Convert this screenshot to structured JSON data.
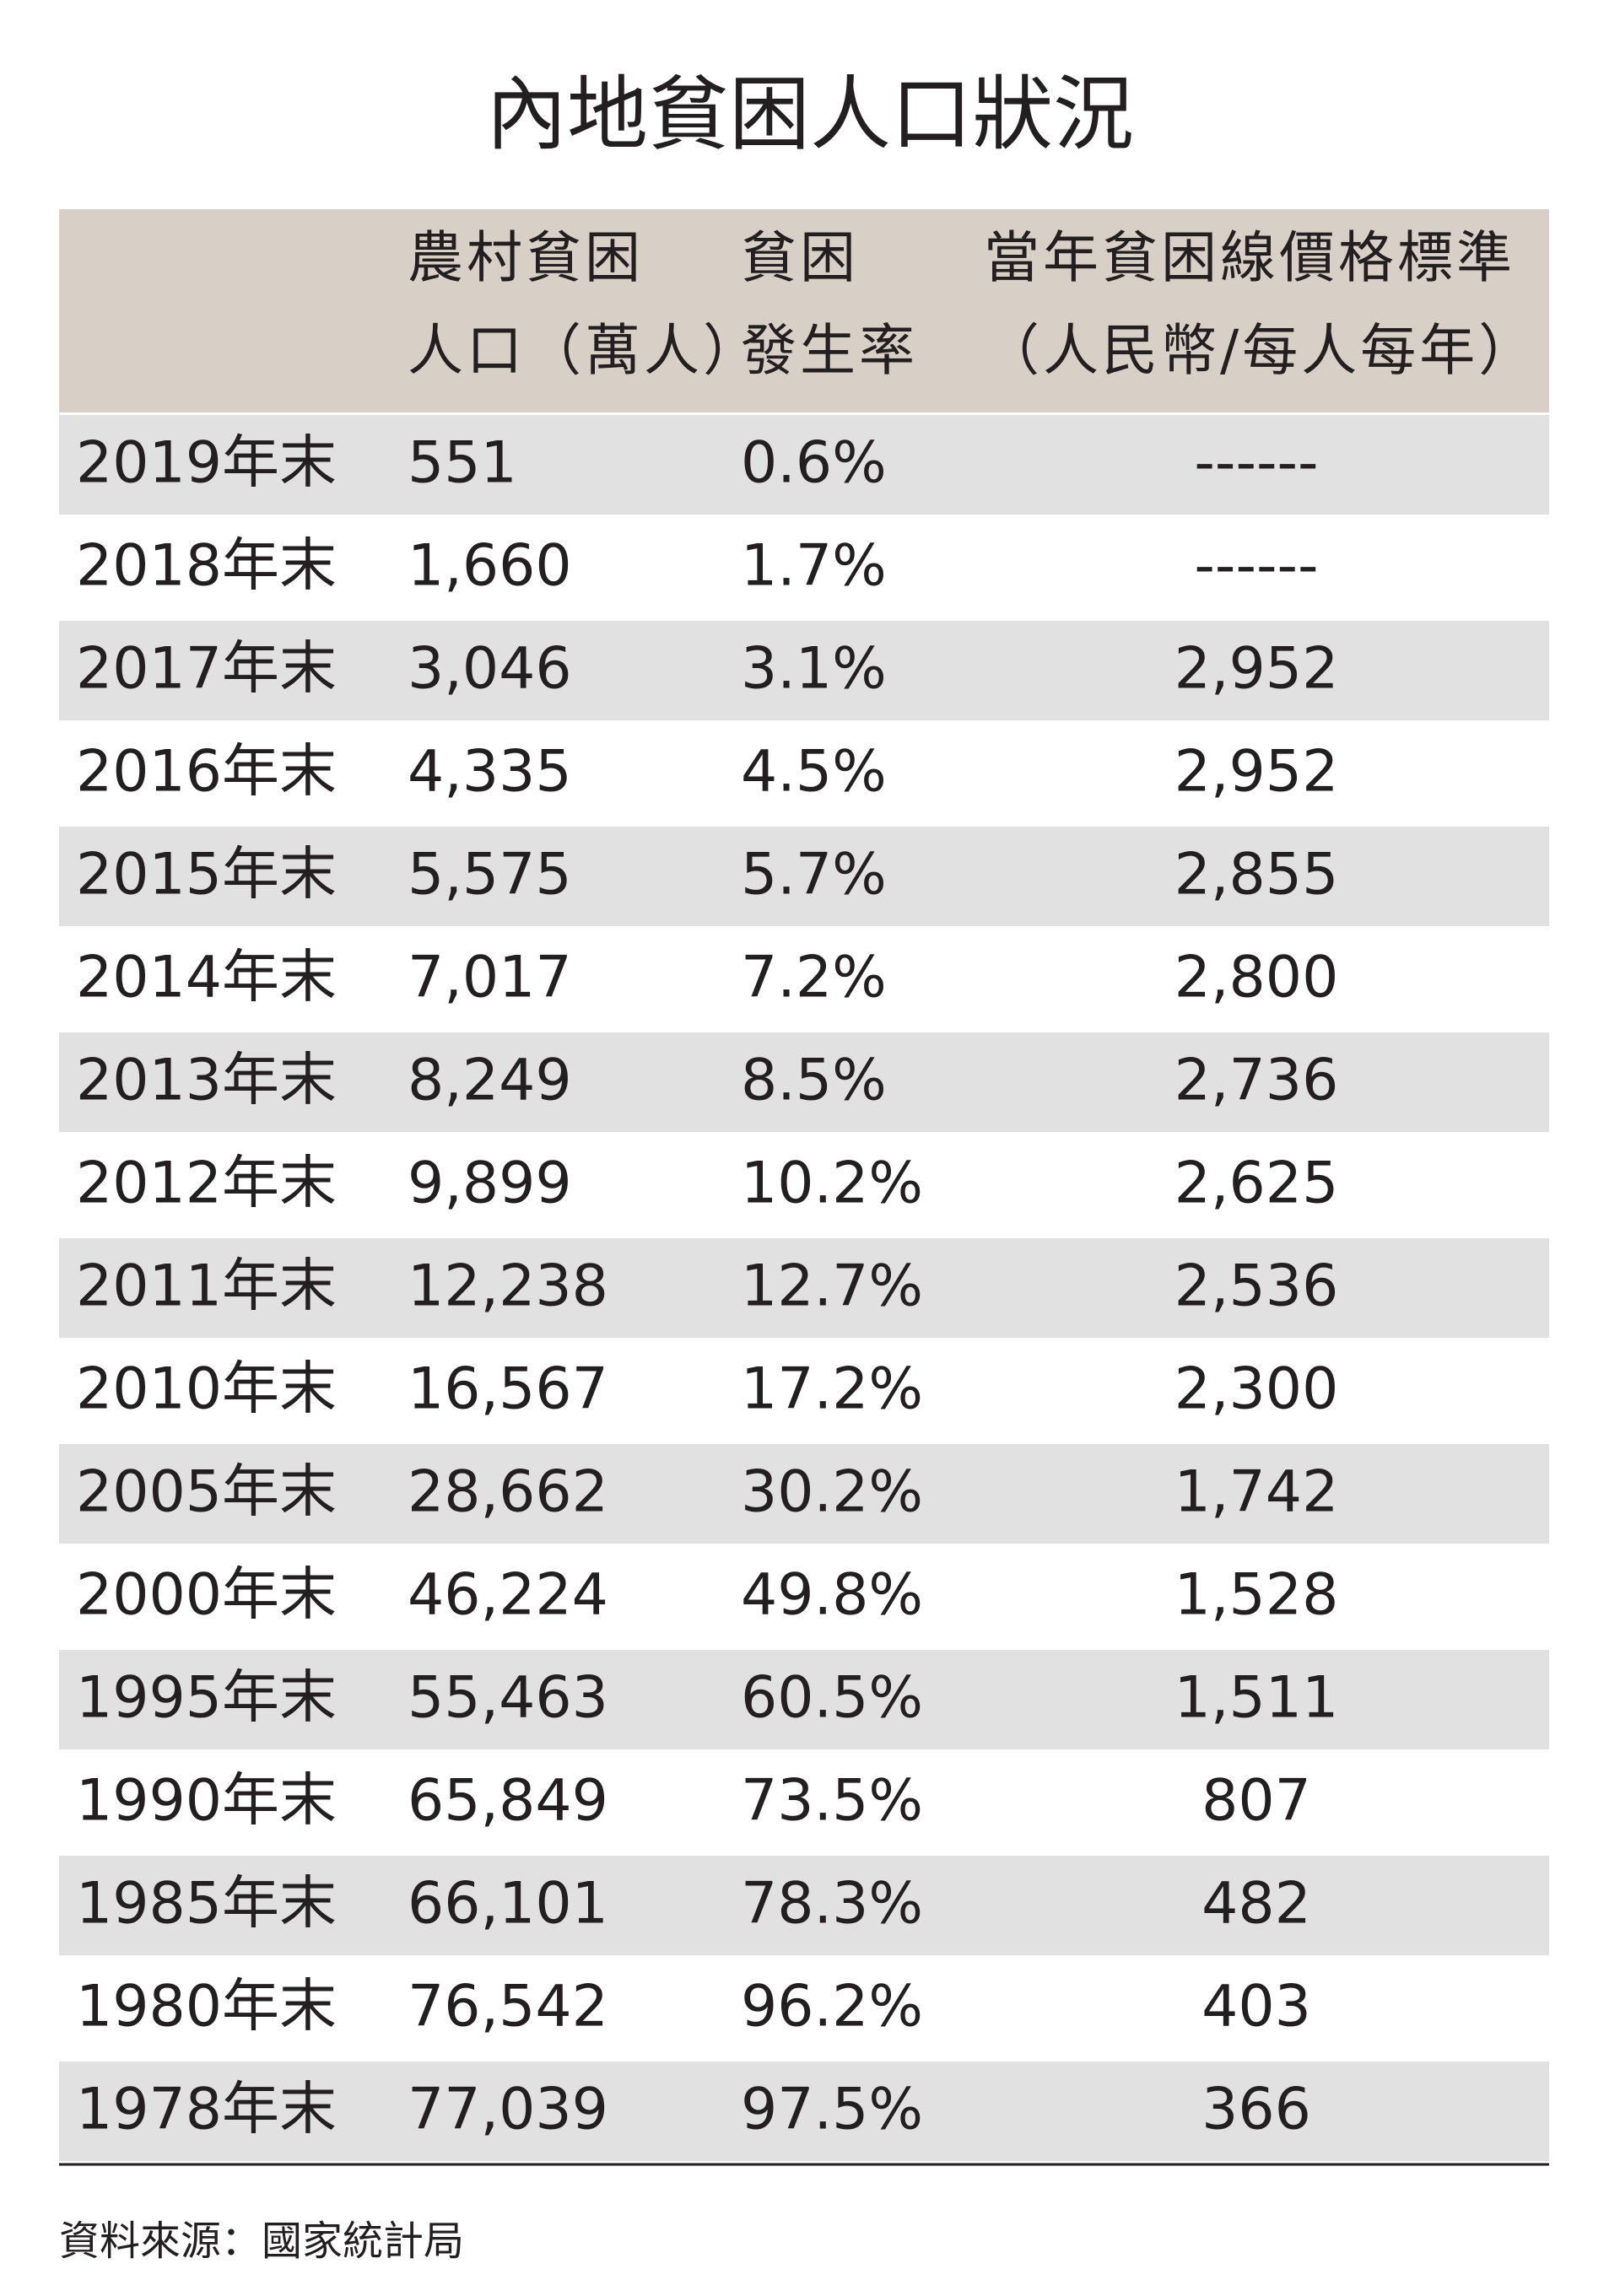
{
  "title": "內地貧困人口狀況",
  "table": {
    "columns": [
      [
        "農村貧困",
        "人口（萬人）"
      ],
      [
        "貧困",
        "發生率"
      ],
      [
        "當年貧困線價格標準",
        "（人民幣/每人每年）"
      ]
    ],
    "rows": [
      [
        "2019年末",
        "551",
        "0.6%",
        "------"
      ],
      [
        "2018年末",
        "1,660",
        "1.7%",
        "------"
      ],
      [
        "2017年末",
        "3,046",
        "3.1%",
        "2,952"
      ],
      [
        "2016年末",
        "4,335",
        "4.5%",
        "2,952"
      ],
      [
        "2015年末",
        "5,575",
        "5.7%",
        "2,855"
      ],
      [
        "2014年末",
        "7,017",
        "7.2%",
        "2,800"
      ],
      [
        "2013年末",
        "8,249",
        "8.5%",
        "2,736"
      ],
      [
        "2012年末",
        "9,899",
        "10.2%",
        "2,625"
      ],
      [
        "2011年末",
        "12,238",
        "12.7%",
        "2,536"
      ],
      [
        "2010年末",
        "16,567",
        "17.2%",
        "2,300"
      ],
      [
        "2005年末",
        "28,662",
        "30.2%",
        "1,742"
      ],
      [
        "2000年末",
        "46,224",
        "49.8%",
        "1,528"
      ],
      [
        "1995年末",
        "55,463",
        "60.5%",
        "1,511"
      ],
      [
        "1990年末",
        "65,849",
        "73.5%",
        "807"
      ],
      [
        "1985年末",
        "66,101",
        "78.3%",
        "482"
      ],
      [
        "1980年末",
        "76,542",
        "96.2%",
        "403"
      ],
      [
        "1978年末",
        "77,039",
        "97.5%",
        "366"
      ]
    ]
  },
  "source": "資料來源：國家統計局"
}
